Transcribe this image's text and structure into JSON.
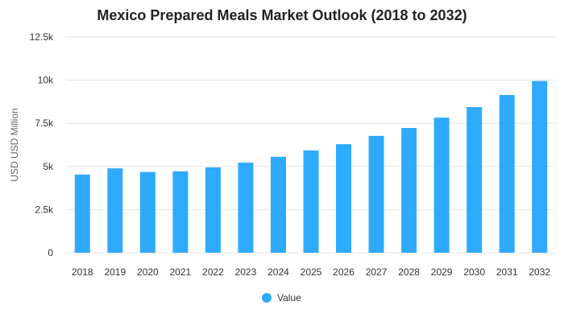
{
  "chart_data": {
    "type": "bar",
    "title": "Mexico Prepared Meals Market Outlook (2018 to 2032)",
    "xlabel": "",
    "ylabel": "USD USD Million",
    "categories": [
      "2018",
      "2019",
      "2020",
      "2021",
      "2022",
      "2023",
      "2024",
      "2025",
      "2026",
      "2027",
      "2028",
      "2029",
      "2030",
      "2031",
      "2032"
    ],
    "series": [
      {
        "name": "Value",
        "color": "#2eaaff",
        "values": [
          4530,
          4890,
          4680,
          4720,
          4950,
          5220,
          5560,
          5930,
          6290,
          6770,
          7230,
          7830,
          8440,
          9140,
          9950
        ]
      }
    ],
    "ylim": [
      0,
      12500
    ],
    "yticks": [
      0,
      2500,
      5000,
      7500,
      10000,
      12500
    ],
    "ytick_labels": [
      "0",
      "2.5k",
      "5k",
      "7.5k",
      "10k",
      "12.5k"
    ],
    "grid": true,
    "legend": "bottom-center"
  }
}
